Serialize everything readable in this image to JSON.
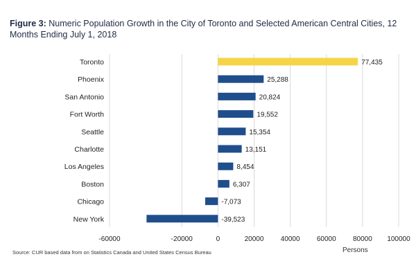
{
  "chart_data": {
    "type": "bar",
    "orientation": "horizontal",
    "figure_label": "Figure 3:",
    "title": "Numeric Population Growth in the City of Toronto and Selected American Central Cities, 12 Months Ending July 1, 2018",
    "categories": [
      "Toronto",
      "Phoenix",
      "San Antonio",
      "Fort Worth",
      "Seattle",
      "Charlotte",
      "Los Angeles",
      "Boston",
      "Chicago",
      "New York"
    ],
    "values": [
      77435,
      25288,
      20824,
      19552,
      15354,
      13151,
      8454,
      6307,
      -7073,
      -39523
    ],
    "data_labels": [
      "77,435",
      "25,288",
      "20,824",
      "19,552",
      "15,354",
      "13,151",
      "8,454",
      "6,307",
      "-7,073",
      "-39,523"
    ],
    "xlim": [
      -60000,
      100000
    ],
    "xticks": [
      -60000,
      -20000,
      0,
      20000,
      40000,
      60000,
      80000,
      100000
    ],
    "xtick_labels": [
      "-60000",
      "-20000",
      "0",
      "20000",
      "40000",
      "60000",
      "80000",
      "100000"
    ],
    "xlabel": "Persons",
    "ylabel": "",
    "grid": "vertical",
    "colors": {
      "highlight": "#f5d547",
      "default": "#1f4e8c",
      "grid": "#d9d9d9"
    },
    "source": "Source: CUR based data from on Statistics Canada and United States Census Bureau"
  }
}
